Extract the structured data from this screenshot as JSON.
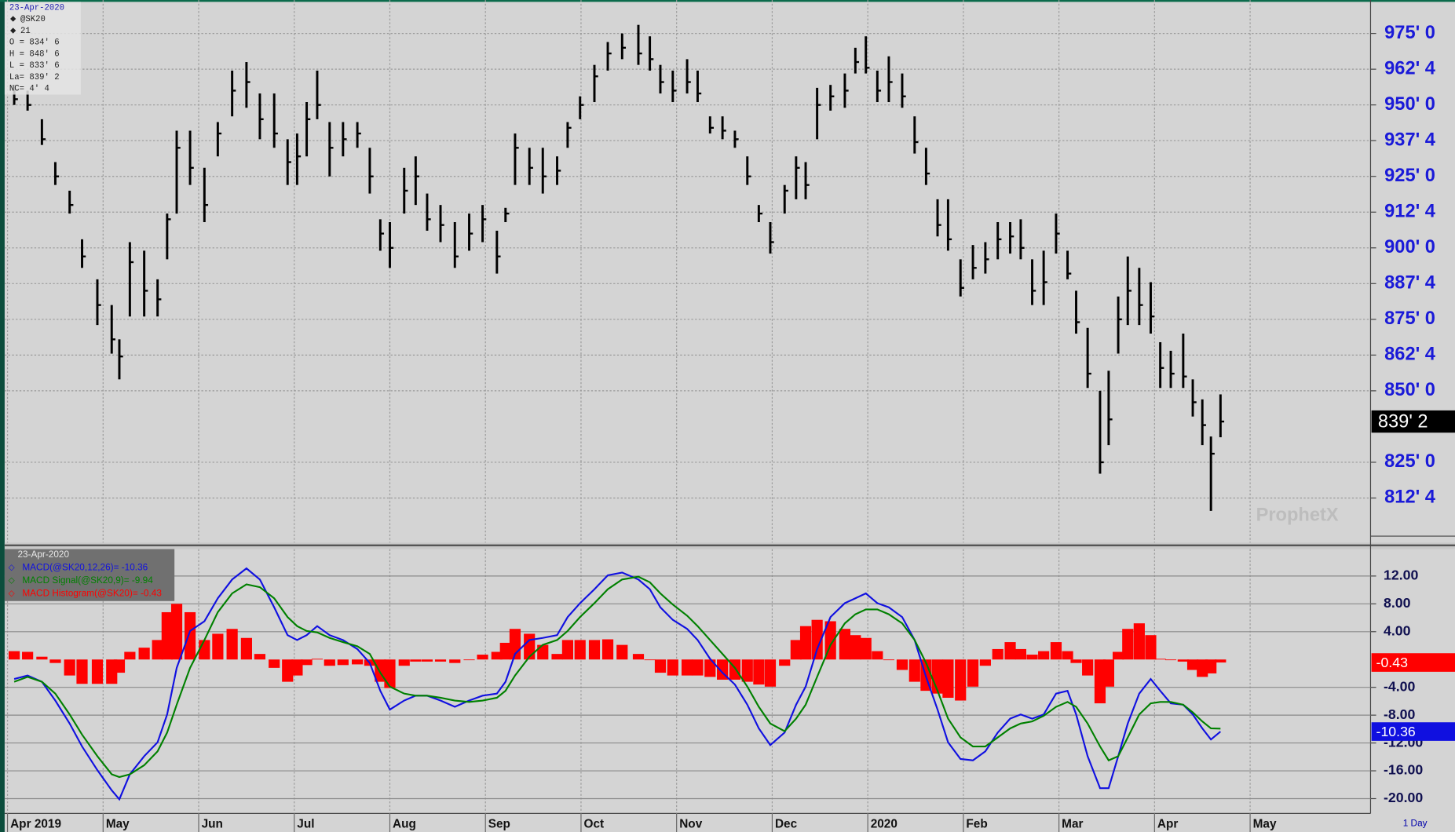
{
  "chart_data": [
    {
      "type": "ohlc",
      "info": [
        "23-Apr-2020",
        "@SK20",
        "21",
        "O = 834' 6",
        "H = 848' 6",
        "L = 833' 6",
        "La= 839' 2",
        "NC= 4' 4"
      ],
      "watermark": "ProphetX",
      "color": "#000000",
      "x": [
        0.07,
        0.21,
        0.36,
        0.5,
        0.65,
        0.78,
        0.94,
        1.09,
        1.17,
        1.28,
        1.43,
        1.57,
        1.67,
        1.77,
        1.91,
        2.06,
        2.2,
        2.35,
        2.5,
        2.64,
        2.79,
        2.93,
        3.03,
        3.13,
        3.24,
        3.37,
        3.51,
        3.66,
        3.79,
        3.9,
        4.0,
        4.15,
        4.27,
        4.39,
        4.53,
        4.68,
        4.83,
        4.97,
        5.12,
        5.21,
        5.31,
        5.46,
        5.6,
        5.75,
        5.86,
        5.99,
        6.14,
        6.28,
        6.43,
        6.6,
        6.72,
        6.83,
        6.96,
        7.11,
        7.22,
        7.35,
        7.48,
        7.61,
        7.74,
        7.86,
        7.98,
        8.13,
        8.25,
        8.35,
        8.47,
        8.61,
        8.76,
        8.87,
        8.98,
        9.1,
        9.22,
        9.36,
        9.49,
        9.61,
        9.73,
        9.84,
        9.97,
        10.1,
        10.23,
        10.36,
        10.49,
        10.6,
        10.72,
        10.84,
        10.97,
        11.09,
        11.18,
        11.3,
        11.43,
        11.52,
        11.62,
        11.72,
        11.84,
        11.96,
        12.06,
        12.17,
        12.3,
        12.4,
        12.5,
        12.59,
        12.69
      ],
      "high": [
        957,
        955,
        945,
        930,
        920,
        903,
        889,
        880,
        868,
        902,
        899,
        889,
        912,
        941,
        941,
        928,
        944,
        962,
        965,
        954,
        954,
        938,
        940,
        951,
        962,
        944,
        944,
        944,
        935,
        910,
        909,
        928,
        932,
        919,
        915,
        909,
        912,
        915,
        906,
        914,
        940,
        935,
        935,
        932,
        944,
        953,
        964,
        972,
        975,
        978,
        974,
        964,
        962,
        966,
        962,
        946,
        946,
        941,
        932,
        915,
        909,
        922,
        932,
        930,
        956,
        957,
        961,
        970,
        974,
        962,
        967,
        961,
        946,
        935,
        917,
        917,
        896,
        901,
        902,
        909,
        909,
        910,
        896,
        899,
        912,
        899,
        885,
        872,
        850,
        857,
        883,
        897,
        893,
        888,
        867,
        864,
        870,
        854,
        847,
        834,
        848.75
      ],
      "low": [
        950,
        948,
        936,
        922,
        912,
        893,
        873,
        863,
        854,
        876,
        876,
        876,
        896,
        912,
        922,
        909,
        932,
        946,
        949,
        938,
        935,
        922,
        922,
        932,
        945,
        925,
        932,
        935,
        919,
        899,
        893,
        912,
        915,
        906,
        902,
        893,
        899,
        902,
        891,
        909,
        922,
        922,
        919,
        922,
        935,
        945,
        951,
        962,
        966,
        964,
        962,
        954,
        951,
        954,
        951,
        940,
        938,
        935,
        922,
        909,
        898,
        912,
        917,
        917,
        938,
        948,
        949,
        961,
        961,
        951,
        951,
        949,
        933,
        922,
        904,
        899,
        883,
        889,
        891,
        896,
        898,
        896,
        880,
        880,
        898,
        889,
        870,
        851,
        821,
        831,
        863,
        873,
        873,
        870,
        851,
        851,
        851,
        841,
        831,
        808,
        833.75
      ],
      "close": [
        952,
        950,
        938,
        925,
        915,
        897,
        880,
        868,
        862,
        895,
        885,
        882,
        910,
        935,
        928,
        915,
        940,
        955,
        958,
        945,
        940,
        930,
        932,
        945,
        950,
        935,
        938,
        940,
        925,
        905,
        900,
        920,
        925,
        910,
        908,
        897,
        905,
        910,
        897,
        912,
        935,
        928,
        925,
        927,
        942,
        950,
        960,
        968,
        970,
        968,
        966,
        958,
        955,
        958,
        954,
        942,
        941,
        938,
        925,
        912,
        902,
        920,
        928,
        922,
        950,
        953,
        955,
        965,
        963,
        955,
        958,
        953,
        937,
        926,
        908,
        903,
        886,
        893,
        896,
        903,
        904,
        900,
        885,
        888,
        905,
        891,
        874,
        856,
        825,
        840,
        875,
        885,
        880,
        876,
        858,
        856,
        855,
        846,
        838,
        828,
        839.25
      ],
      "badge": "839' 2",
      "xlim": [
        -0.03,
        14.26
      ],
      "ylim": [
        796.9,
        986.7
      ],
      "yticks": [
        {
          "value": 975,
          "label": "975' 0"
        },
        {
          "value": 962.5,
          "label": "962' 4"
        },
        {
          "value": 950,
          "label": "950' 0"
        },
        {
          "value": 937.5,
          "label": "937' 4"
        },
        {
          "value": 925,
          "label": "925' 0"
        },
        {
          "value": 912.5,
          "label": "912' 4"
        },
        {
          "value": 900,
          "label": "900' 0"
        },
        {
          "value": 887.5,
          "label": "887' 4"
        },
        {
          "value": 875,
          "label": "875' 0"
        },
        {
          "value": 862.5,
          "label": "862' 4"
        },
        {
          "value": 850,
          "label": "850' 0"
        },
        {
          "value": 825,
          "label": "825' 0"
        },
        {
          "value": 812.5,
          "label": "812' 4"
        }
      ],
      "grid": true
    },
    {
      "type": "macd",
      "legend_date": "23-Apr-2020",
      "interval": "1 Day",
      "x": [
        0.07,
        0.21,
        0.36,
        0.5,
        0.65,
        0.78,
        0.94,
        1.09,
        1.17,
        1.28,
        1.43,
        1.57,
        1.67,
        1.77,
        1.91,
        2.06,
        2.2,
        2.35,
        2.5,
        2.64,
        2.79,
        2.93,
        3.03,
        3.13,
        3.24,
        3.37,
        3.51,
        3.66,
        3.79,
        3.9,
        4.0,
        4.15,
        4.27,
        4.39,
        4.53,
        4.68,
        4.83,
        4.97,
        5.12,
        5.21,
        5.31,
        5.46,
        5.6,
        5.75,
        5.86,
        5.99,
        6.14,
        6.28,
        6.43,
        6.6,
        6.72,
        6.83,
        6.96,
        7.11,
        7.22,
        7.35,
        7.48,
        7.61,
        7.74,
        7.86,
        7.98,
        8.13,
        8.25,
        8.35,
        8.47,
        8.61,
        8.76,
        8.87,
        8.98,
        9.1,
        9.22,
        9.36,
        9.49,
        9.61,
        9.73,
        9.84,
        9.97,
        10.1,
        10.23,
        10.36,
        10.49,
        10.6,
        10.72,
        10.84,
        10.97,
        11.09,
        11.18,
        11.3,
        11.43,
        11.52,
        11.62,
        11.72,
        11.84,
        11.96,
        12.06,
        12.17,
        12.3,
        12.4,
        12.5,
        12.59,
        12.69
      ],
      "series": [
        {
          "name": "MACD(@SK20,12,26)= -10.36",
          "kind": "line",
          "color": "#1010e0",
          "badge": "-10.36",
          "values": [
            -2.8,
            -2.3,
            -3.2,
            -5.9,
            -9.2,
            -12.5,
            -15.9,
            -18.8,
            -20.1,
            -16.5,
            -13.9,
            -11.9,
            -7.9,
            -1.2,
            4.1,
            5.5,
            8.8,
            11.5,
            13.1,
            11.5,
            7.5,
            3.5,
            2.8,
            3.5,
            4.8,
            3.5,
            2.8,
            1.5,
            -0.5,
            -4.5,
            -7.2,
            -5.9,
            -5.2,
            -5.2,
            -5.9,
            -6.8,
            -5.9,
            -5.2,
            -4.9,
            -3.2,
            0.8,
            2.8,
            3.1,
            3.5,
            6.1,
            8.1,
            10.1,
            12.1,
            12.5,
            11.5,
            10.1,
            7.5,
            5.7,
            4.4,
            2.8,
            0.1,
            -1.9,
            -3.6,
            -6.5,
            -9.9,
            -12.3,
            -10.5,
            -6.5,
            -3.9,
            1.5,
            6.1,
            8.1,
            8.8,
            9.5,
            8.1,
            7.5,
            6.1,
            2.8,
            -2.5,
            -7.2,
            -11.9,
            -14.3,
            -14.5,
            -13.2,
            -10.5,
            -8.5,
            -7.9,
            -8.5,
            -7.9,
            -4.9,
            -4.5,
            -7.9,
            -13.9,
            -18.5,
            -18.5,
            -13.9,
            -9.2,
            -4.9,
            -2.8,
            -4.5,
            -6.3,
            -6.5,
            -7.9,
            -9.9,
            -11.5,
            -10.36
          ]
        },
        {
          "name": "MACD Signal(@SK20,9)= -9.94",
          "kind": "line",
          "color": "#008000",
          "values": [
            -3.2,
            -2.5,
            -3.2,
            -4.9,
            -7.9,
            -10.8,
            -13.9,
            -16.5,
            -16.9,
            -16.5,
            -15.2,
            -13.2,
            -10.5,
            -6.5,
            -1.2,
            2.8,
            6.8,
            9.5,
            10.8,
            10.4,
            8.8,
            6.1,
            4.8,
            4.1,
            3.9,
            3.1,
            2.5,
            1.9,
            0.8,
            -1.9,
            -3.9,
            -4.9,
            -5.2,
            -5.2,
            -5.5,
            -5.9,
            -6.1,
            -5.9,
            -5.5,
            -4.5,
            -2.3,
            0.4,
            2.1,
            2.8,
            4.1,
            6.1,
            8.1,
            10.1,
            11.5,
            11.9,
            11.1,
            9.5,
            7.9,
            6.3,
            4.8,
            2.8,
            0.8,
            -1.2,
            -3.9,
            -6.8,
            -9.2,
            -10.3,
            -8.5,
            -6.5,
            -2.5,
            2.1,
            5.2,
            6.5,
            7.2,
            7.2,
            6.5,
            5.2,
            2.8,
            -0.5,
            -4.5,
            -8.5,
            -11.2,
            -12.5,
            -12.5,
            -11.2,
            -9.9,
            -9.2,
            -8.9,
            -8.1,
            -6.8,
            -6.1,
            -6.8,
            -9.2,
            -12.5,
            -14.5,
            -13.9,
            -11.2,
            -7.9,
            -6.3,
            -6.1,
            -6.1,
            -6.5,
            -7.6,
            -8.9,
            -9.9,
            -9.94
          ]
        },
        {
          "name": "MACD Histogram(@SK20)= -0.43",
          "kind": "bar",
          "color": "#ff0000",
          "badge": "-0.43",
          "values": [
            1.2,
            1.1,
            0.4,
            -0.5,
            -2.3,
            -3.5,
            -3.5,
            -3.5,
            -1.9,
            1.1,
            1.7,
            2.8,
            6.8,
            8.0,
            6.8,
            2.8,
            3.7,
            4.4,
            3.1,
            0.8,
            -1.2,
            -3.2,
            -2.3,
            -0.8,
            0.1,
            -0.9,
            -0.8,
            -0.7,
            -0.9,
            -3.2,
            -4.1,
            -0.9,
            -0.3,
            -0.3,
            -0.3,
            -0.5,
            -0.1,
            0.7,
            1.1,
            2.4,
            4.4,
            3.7,
            2.1,
            0.8,
            2.8,
            2.8,
            2.8,
            2.9,
            2.1,
            0.8,
            -0.1,
            -1.9,
            -2.3,
            -2.3,
            -2.3,
            -2.5,
            -2.9,
            -2.9,
            -3.2,
            -3.6,
            -3.9,
            -0.9,
            2.8,
            4.8,
            5.7,
            5.5,
            4.4,
            3.5,
            3.1,
            1.2,
            -0.1,
            -1.5,
            -3.2,
            -4.5,
            -4.9,
            -5.5,
            -5.9,
            -3.9,
            -0.9,
            1.5,
            2.5,
            1.5,
            0.7,
            1.2,
            2.5,
            1.2,
            -0.5,
            -2.3,
            -6.3,
            -3.9,
            1.1,
            4.4,
            5.2,
            3.5,
            0.1,
            -0.1,
            -0.3,
            -1.5,
            -2.5,
            -2.0,
            -0.43
          ]
        }
      ],
      "xlim": [
        -0.03,
        14.26
      ],
      "xticks": [
        {
          "value": 0,
          "label": "Apr 2019"
        },
        {
          "value": 1,
          "label": "May"
        },
        {
          "value": 2,
          "label": "Jun"
        },
        {
          "value": 3,
          "label": "Jul"
        },
        {
          "value": 4,
          "label": "Aug"
        },
        {
          "value": 5,
          "label": "Sep"
        },
        {
          "value": 6,
          "label": "Oct"
        },
        {
          "value": 7,
          "label": "Nov"
        },
        {
          "value": 8,
          "label": "Dec"
        },
        {
          "value": 9,
          "label": "2020"
        },
        {
          "value": 10,
          "label": "Feb"
        },
        {
          "value": 11,
          "label": "Mar"
        },
        {
          "value": 12,
          "label": "Apr"
        },
        {
          "value": 13,
          "label": "May"
        }
      ],
      "ylim": [
        -22.13,
        15.87
      ],
      "yticks": [
        {
          "value": 12,
          "label": "12.00"
        },
        {
          "value": 8,
          "label": "8.00"
        },
        {
          "value": 4,
          "label": "4.00"
        },
        {
          "value": -4,
          "label": "-4.00"
        },
        {
          "value": -8,
          "label": "-8.00"
        },
        {
          "value": -12,
          "label": "-12.00"
        },
        {
          "value": -16,
          "label": "-16.00"
        },
        {
          "value": -20,
          "label": "-20.00"
        }
      ],
      "grid": true
    }
  ]
}
